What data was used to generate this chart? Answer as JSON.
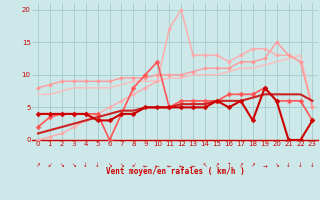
{
  "bg_color": "#cce8e8",
  "grid_color": "#aacece",
  "xlabel": "Vent moyen/en rafales ( km/h )",
  "xlim": [
    -0.5,
    23.5
  ],
  "ylim": [
    0,
    21
  ],
  "yticks": [
    0,
    5,
    10,
    15,
    20
  ],
  "xticks": [
    0,
    1,
    2,
    3,
    4,
    5,
    6,
    7,
    8,
    9,
    10,
    11,
    12,
    13,
    14,
    15,
    16,
    17,
    18,
    19,
    20,
    21,
    22,
    23
  ],
  "lines": [
    {
      "comment": "lightest pink, no marker, gently rising straight line",
      "x": [
        0,
        1,
        2,
        3,
        4,
        5,
        6,
        7,
        8,
        9,
        10,
        11,
        12,
        13,
        14,
        15,
        16,
        17,
        18,
        19,
        20,
        21,
        22,
        23
      ],
      "y": [
        7,
        7,
        7.5,
        8,
        8,
        8,
        8,
        8.5,
        9,
        9,
        9,
        9.5,
        9.5,
        10,
        10,
        10,
        10.5,
        11,
        11,
        11.5,
        12,
        12.5,
        13,
        5
      ],
      "color": "#ffbbbb",
      "lw": 1.0,
      "marker": null,
      "ms": 0
    },
    {
      "comment": "light pink with small diamond markers, big zigzag reaching 20",
      "x": [
        0,
        1,
        2,
        3,
        4,
        5,
        6,
        7,
        8,
        9,
        10,
        11,
        12,
        13,
        14,
        15,
        16,
        17,
        18,
        19,
        20,
        21,
        22,
        23
      ],
      "y": [
        0,
        0.5,
        1,
        2,
        3,
        4,
        5,
        6,
        7,
        8,
        9,
        17,
        20,
        13,
        13,
        13,
        12,
        13,
        14,
        14,
        13,
        13,
        12,
        5
      ],
      "color": "#ffaaaa",
      "lw": 1.0,
      "marker": "D",
      "ms": 2.0
    },
    {
      "comment": "medium pink with diamond markers, moderate zigzag",
      "x": [
        0,
        1,
        2,
        3,
        4,
        5,
        6,
        7,
        8,
        9,
        10,
        11,
        12,
        13,
        14,
        15,
        16,
        17,
        18,
        19,
        20,
        21,
        22,
        23
      ],
      "y": [
        8,
        8.5,
        9,
        9,
        9,
        9,
        9,
        9.5,
        9.5,
        9.5,
        10,
        10,
        10,
        10.5,
        11,
        11,
        11,
        12,
        12,
        12.5,
        15,
        13,
        12,
        5
      ],
      "color": "#ff9999",
      "lw": 1.0,
      "marker": "D",
      "ms": 2.0
    },
    {
      "comment": "medium-dark red zigzag with markers, peaks at 12 around x=10",
      "x": [
        0,
        1,
        2,
        3,
        4,
        5,
        6,
        7,
        8,
        9,
        10,
        11,
        12,
        13,
        14,
        15,
        16,
        17,
        18,
        19,
        20,
        21,
        22,
        23
      ],
      "y": [
        2,
        3.5,
        4,
        4,
        4,
        4,
        0,
        4,
        8,
        10,
        12,
        5,
        6,
        6,
        6,
        6,
        7,
        7,
        7,
        8,
        6,
        6,
        6,
        3
      ],
      "color": "#ff5555",
      "lw": 1.2,
      "marker": "D",
      "ms": 2.5
    },
    {
      "comment": "dark red, smooth gradually rising",
      "x": [
        0,
        1,
        2,
        3,
        4,
        5,
        6,
        7,
        8,
        9,
        10,
        11,
        12,
        13,
        14,
        15,
        16,
        17,
        18,
        19,
        20,
        21,
        22,
        23
      ],
      "y": [
        1,
        1.5,
        2,
        2.5,
        3,
        3.5,
        4,
        4.5,
        4.5,
        5,
        5,
        5,
        5.5,
        5.5,
        5.5,
        6,
        6,
        6,
        6.5,
        7,
        7,
        7,
        7,
        6
      ],
      "color": "#cc2222",
      "lw": 1.5,
      "marker": null,
      "ms": 0
    },
    {
      "comment": "darkest red with diamond markers, low values, drops to 0 at x=21",
      "x": [
        0,
        1,
        2,
        3,
        4,
        5,
        6,
        7,
        8,
        9,
        10,
        11,
        12,
        13,
        14,
        15,
        16,
        17,
        18,
        19,
        20,
        21,
        22,
        23
      ],
      "y": [
        4,
        4,
        4,
        4,
        4,
        3,
        3,
        4,
        4,
        5,
        5,
        5,
        5,
        5,
        5,
        6,
        5,
        6,
        3,
        8,
        6,
        0,
        0,
        3
      ],
      "color": "#cc0000",
      "lw": 1.5,
      "marker": "D",
      "ms": 2.5
    }
  ],
  "wind_arrows": [
    "↗",
    "↙",
    "↘",
    "↘",
    "↓",
    "↓",
    "↘",
    "↘",
    "↙",
    "←",
    "←",
    "←",
    "←",
    "←",
    "↖",
    "↗",
    "↑",
    "↗",
    "↗",
    "→",
    "↘",
    "↓",
    "↓",
    "↓"
  ]
}
